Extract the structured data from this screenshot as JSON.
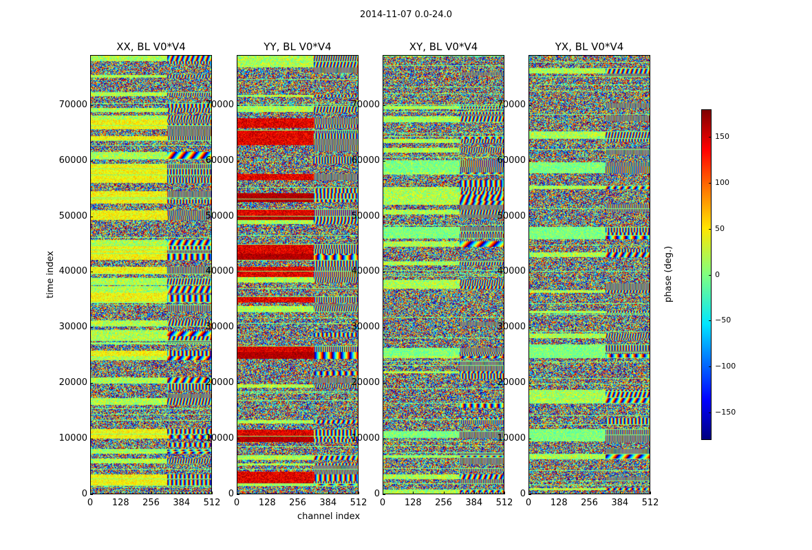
{
  "chart_data": {
    "type": "heatmap",
    "title": "2014-11-07 0.0-24.0",
    "panels": [
      {
        "title": "XX, BL V0*V4",
        "strong_rows": [
          0.04,
          0.14,
          0.33,
          0.45,
          0.52,
          0.56,
          0.64,
          0.68,
          0.73,
          0.75,
          0.82,
          0.85
        ],
        "strong_level": 0.62,
        "red_rows": []
      },
      {
        "title": "YY, BL V0*V4",
        "strong_rows": [
          0.04,
          0.14,
          0.33,
          0.45,
          0.52,
          0.56,
          0.64,
          0.68,
          0.73,
          0.82,
          0.85
        ],
        "strong_level": 0.9,
        "red_rows": [
          0.13,
          0.32,
          0.55,
          0.64,
          0.68
        ]
      },
      {
        "title": "XY, BL V0*V4",
        "strong_rows": [
          0.14,
          0.33,
          0.6,
          0.75
        ],
        "strong_level": 0.5,
        "red_rows": []
      },
      {
        "title": "YX, BL V0*V4",
        "strong_rows": [
          0.14,
          0.33,
          0.6,
          0.75
        ],
        "strong_level": 0.5,
        "red_rows": []
      }
    ],
    "xlabel": "channel index",
    "ylabel": "time index",
    "xlim": [
      0,
      512
    ],
    "ylim": [
      0,
      79000
    ],
    "xticks": [
      "0",
      "128",
      "256",
      "384",
      "512"
    ],
    "xtick_values": [
      0,
      128,
      256,
      384,
      512
    ],
    "yticks": [
      "0",
      "10000",
      "20000",
      "30000",
      "40000",
      "50000",
      "60000",
      "70000"
    ],
    "ytick_values": [
      0,
      10000,
      20000,
      30000,
      40000,
      50000,
      60000,
      70000
    ],
    "colorbar": {
      "label": "phase (deg.)",
      "range": [
        -180,
        180
      ],
      "ticks": [
        "150",
        "100",
        "50",
        "0",
        "−50",
        "−100",
        "−150"
      ],
      "tick_values": [
        150,
        100,
        50,
        0,
        -50,
        -100,
        -150
      ],
      "colormap": "jet"
    }
  }
}
